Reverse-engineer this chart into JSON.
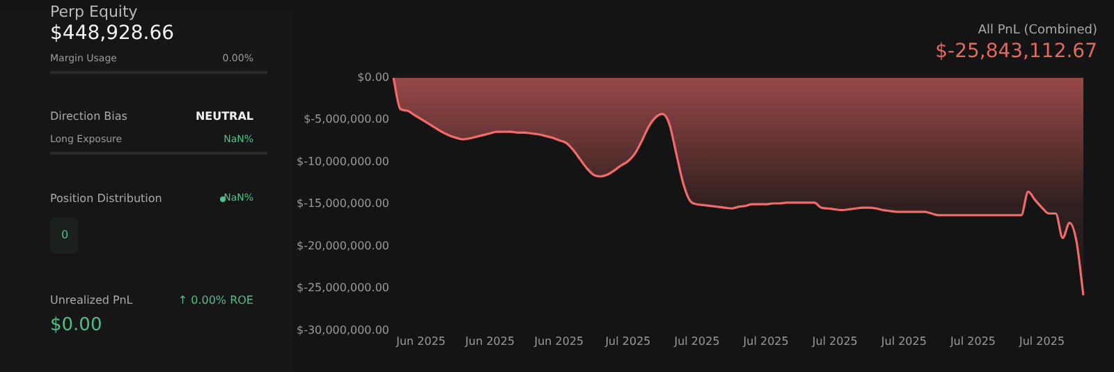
{
  "chart_data": [
    {
      "type": "other",
      "annotations": [
        "Perp Equity",
        "$448,928.66",
        "Margin Usage",
        "0.00%",
        "Direction Bias",
        "NEUTRAL",
        "Long Exposure",
        "NaN%",
        "Position Distribution",
        "NaN%",
        "0",
        "Unrealized PnL",
        "↑ 0.00% ROE",
        "$0.00"
      ]
    },
    {
      "type": "area",
      "title": "All PnL (Combined)",
      "subtitle": "$-25,843,112.67",
      "legend": false,
      "grid": false,
      "marker": "none",
      "categories": [
        null,
        null,
        null,
        null,
        "Jun 2025",
        null,
        null,
        null,
        null,
        null,
        null,
        null,
        null,
        null,
        "Jun 2025",
        null,
        null,
        null,
        null,
        null,
        null,
        null,
        null,
        null,
        "Jun 2025",
        null,
        null,
        null,
        null,
        null,
        null,
        null,
        null,
        null,
        "Jul 2025",
        null,
        null,
        null,
        null,
        null,
        null,
        null,
        null,
        null,
        "Jul 2025",
        null,
        null,
        null,
        null,
        null,
        null,
        null,
        null,
        null,
        "Jul 2025",
        null,
        null,
        null,
        null,
        null,
        null,
        null,
        null,
        null,
        "Jul 2025",
        null,
        null,
        null,
        null,
        null,
        null,
        null,
        null,
        null,
        "Jul 2025",
        null,
        null,
        null,
        null,
        null,
        null,
        null,
        null,
        null,
        "Jul 2025",
        null,
        null,
        null,
        null,
        null,
        null,
        null,
        null,
        null,
        "Jul 2025",
        null,
        null,
        null,
        null,
        null,
        null
      ],
      "series": [
        {
          "color": "#f26b6b",
          "values": [
            0,
            -3700000,
            -3900000,
            -4400000,
            -4900000,
            -5400000,
            -5900000,
            -6400000,
            -6800000,
            -7100000,
            -7300000,
            -7200000,
            -7000000,
            -6800000,
            -6600000,
            -6400000,
            -6400000,
            -6400000,
            -6500000,
            -6500000,
            -6600000,
            -6700000,
            -6900000,
            -7100000,
            -7400000,
            -7700000,
            -8500000,
            -9600000,
            -10700000,
            -11500000,
            -11700000,
            -11500000,
            -11000000,
            -10400000,
            -9900000,
            -9000000,
            -7500000,
            -5800000,
            -4700000,
            -4300000,
            -5500000,
            -9000000,
            -12500000,
            -14600000,
            -15000000,
            -15100000,
            -15200000,
            -15300000,
            -15400000,
            -15500000,
            -15300000,
            -15200000,
            -15000000,
            -15000000,
            -15000000,
            -14900000,
            -14900000,
            -14800000,
            -14800000,
            -14800000,
            -14800000,
            -14800000,
            -15400000,
            -15500000,
            -15600000,
            -15700000,
            -15600000,
            -15500000,
            -15400000,
            -15400000,
            -15500000,
            -15700000,
            -15800000,
            -15900000,
            -15900000,
            -15900000,
            -15900000,
            -15900000,
            -16100000,
            -16300000,
            -16300000,
            -16300000,
            -16300000,
            -16300000,
            -16300000,
            -16300000,
            -16300000,
            -16300000,
            -16300000,
            -16300000,
            -16300000,
            -16300000,
            -13500000,
            -14500000,
            -15400000,
            -16100000,
            -16100000,
            -19000000,
            -17200000,
            -19400000,
            -25800000
          ]
        }
      ],
      "ylim": [
        -30000000,
        0
      ],
      "yticks": [
        {
          "value": 0,
          "label": "$0.00"
        },
        {
          "value": -5000000,
          "label": "$-5,000,000.00"
        },
        {
          "value": -10000000,
          "label": "$-10,000,000.00"
        },
        {
          "value": -15000000,
          "label": "$-15,000,000.00"
        },
        {
          "value": -20000000,
          "label": "$-20,000,000.00"
        },
        {
          "value": -25000000,
          "label": "$-25,000,000.00"
        },
        {
          "value": -30000000,
          "label": "$-30,000,000.00"
        }
      ]
    }
  ]
}
